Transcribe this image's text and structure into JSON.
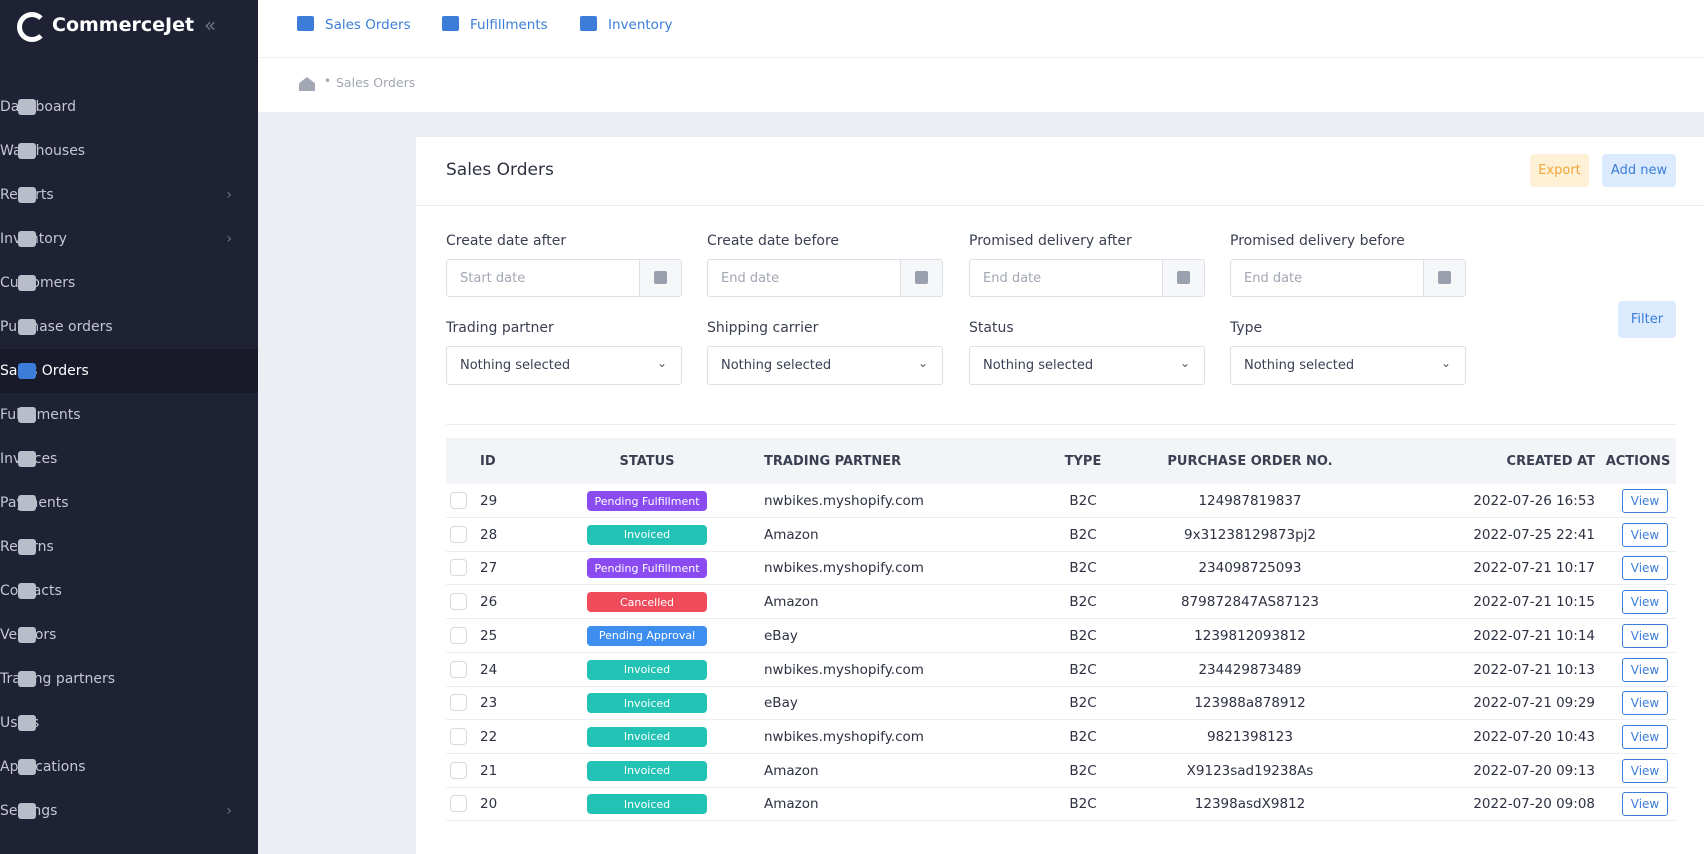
{
  "sidebar": {
    "brand": "CommerceJet",
    "active": "Sales Orders",
    "menu": [
      {
        "label": "Dashboard",
        "submenu": false
      },
      {
        "label": "Warehouses",
        "submenu": false
      },
      {
        "label": "Reports",
        "submenu": true
      },
      {
        "label": "Inventory",
        "submenu": true
      },
      {
        "label": "Customers",
        "submenu": false
      },
      {
        "label": "Purchase orders",
        "submenu": false
      },
      {
        "label": "Sales Orders",
        "submenu": false
      },
      {
        "label": "Fulfillments",
        "submenu": false
      },
      {
        "label": "Invoices",
        "submenu": false
      },
      {
        "label": "Payments",
        "submenu": false
      },
      {
        "label": "Returns",
        "submenu": false
      },
      {
        "label": "Contacts",
        "submenu": false
      },
      {
        "label": "Vendors",
        "submenu": false
      },
      {
        "label": "Trading partners",
        "submenu": false
      },
      {
        "label": "Users",
        "submenu": false
      },
      {
        "label": "Applications",
        "submenu": false
      },
      {
        "label": "Settings",
        "submenu": true
      }
    ]
  },
  "topnav": [
    "Sales Orders",
    "Fulfillments",
    "Inventory"
  ],
  "breadcrumb": "Sales Orders",
  "page": {
    "title": "Sales Orders",
    "export": "Export",
    "add_new": "Add new",
    "filter": "Filter"
  },
  "date_filters": [
    {
      "label": "Create date after",
      "placeholder": "Start date"
    },
    {
      "label": "Create date before",
      "placeholder": "End date"
    },
    {
      "label": "Promised delivery after",
      "placeholder": "End date"
    },
    {
      "label": "Promised delivery before",
      "placeholder": "End date"
    }
  ],
  "select_filters": [
    {
      "label": "Trading partner",
      "value": "Nothing selected"
    },
    {
      "label": "Shipping carrier",
      "value": "Nothing selected"
    },
    {
      "label": "Status",
      "value": "Nothing selected"
    },
    {
      "label": "Type",
      "value": "Nothing selected"
    }
  ],
  "table": {
    "headers": [
      "ID",
      "STATUS",
      "TRADING PARTNER",
      "TYPE",
      "PURCHASE ORDER NO.",
      "CREATED AT",
      "ACTIONS"
    ],
    "rows": [
      {
        "id": "29",
        "status": "Pending Fulfillment",
        "status_color": "#8a4cf0",
        "partner": "nwbikes.myshopify.com",
        "type": "B2C",
        "po": "124987819837",
        "created": "2022-07-26 16:53",
        "action": "View"
      },
      {
        "id": "28",
        "status": "Invoiced",
        "status_color": "#22c3b4",
        "partner": "Amazon",
        "type": "B2C",
        "po": "9x31238129873pj2",
        "created": "2022-07-25 22:41",
        "action": "View"
      },
      {
        "id": "27",
        "status": "Pending Fulfillment",
        "status_color": "#8a4cf0",
        "partner": "nwbikes.myshopify.com",
        "type": "B2C",
        "po": "234098725093",
        "created": "2022-07-21 10:17",
        "action": "View"
      },
      {
        "id": "26",
        "status": "Cancelled",
        "status_color": "#ef4b5b",
        "partner": "Amazon",
        "type": "B2C",
        "po": "879872847AS87123",
        "created": "2022-07-21 10:15",
        "action": "View"
      },
      {
        "id": "25",
        "status": "Pending Approval",
        "status_color": "#3d8ef0",
        "partner": "eBay",
        "type": "B2C",
        "po": "1239812093812",
        "created": "2022-07-21 10:14",
        "action": "View"
      },
      {
        "id": "24",
        "status": "Invoiced",
        "status_color": "#22c3b4",
        "partner": "nwbikes.myshopify.com",
        "type": "B2C",
        "po": "234429873489",
        "created": "2022-07-21 10:13",
        "action": "View"
      },
      {
        "id": "23",
        "status": "Invoiced",
        "status_color": "#22c3b4",
        "partner": "eBay",
        "type": "B2C",
        "po": "123988a878912",
        "created": "2022-07-21 09:29",
        "action": "View"
      },
      {
        "id": "22",
        "status": "Invoiced",
        "status_color": "#22c3b4",
        "partner": "nwbikes.myshopify.com",
        "type": "B2C",
        "po": "9821398123",
        "created": "2022-07-20 10:43",
        "action": "View"
      },
      {
        "id": "21",
        "status": "Invoiced",
        "status_color": "#22c3b4",
        "partner": "Amazon",
        "type": "B2C",
        "po": "X9123sad19238As",
        "created": "2022-07-20 09:13",
        "action": "View"
      },
      {
        "id": "20",
        "status": "Invoiced",
        "status_color": "#22c3b4",
        "partner": "Amazon",
        "type": "B2C",
        "po": "12398asdX9812",
        "created": "2022-07-20 09:08",
        "action": "View"
      }
    ]
  }
}
